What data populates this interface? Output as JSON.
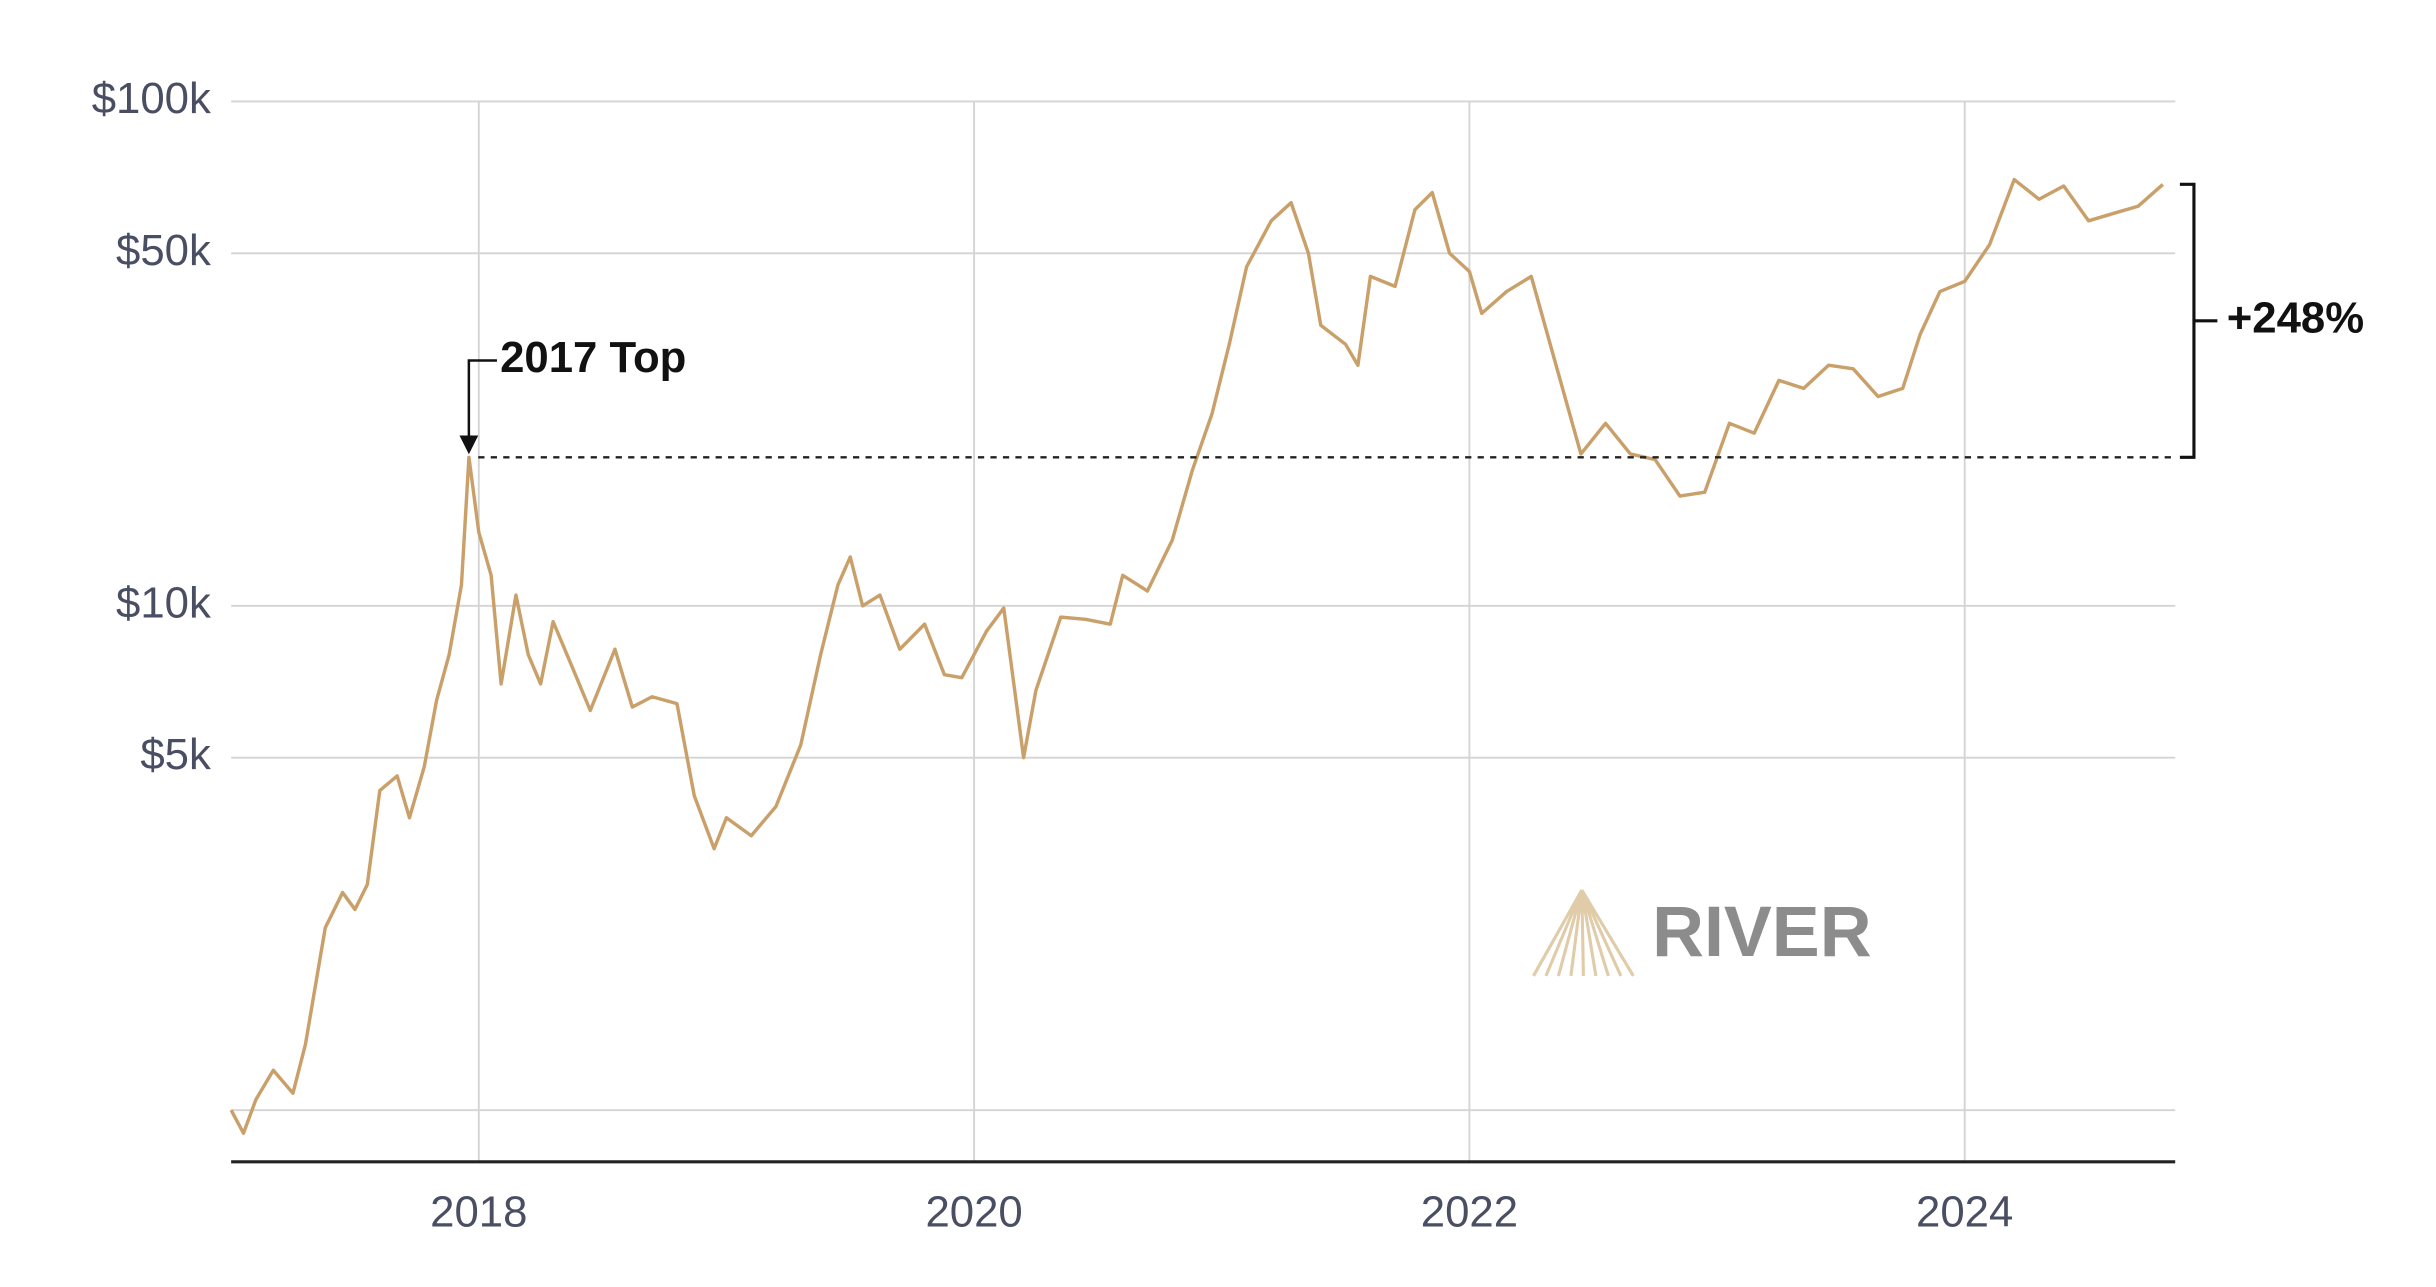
{
  "chart_data": {
    "type": "line",
    "log_scale": true,
    "grid": true,
    "color": "#c9a06a",
    "x": [
      2017.0,
      2017.05,
      2017.1,
      2017.17,
      2017.25,
      2017.3,
      2017.38,
      2017.45,
      2017.5,
      2017.55,
      2017.6,
      2017.67,
      2017.72,
      2017.78,
      2017.83,
      2017.88,
      2017.93,
      2017.96,
      2018.0,
      2018.05,
      2018.09,
      2018.15,
      2018.2,
      2018.25,
      2018.3,
      2018.38,
      2018.45,
      2018.55,
      2018.62,
      2018.7,
      2018.8,
      2018.87,
      2018.95,
      2019.0,
      2019.1,
      2019.2,
      2019.3,
      2019.38,
      2019.45,
      2019.5,
      2019.55,
      2019.62,
      2019.7,
      2019.8,
      2019.88,
      2019.95,
      2020.05,
      2020.12,
      2020.2,
      2020.25,
      2020.35,
      2020.45,
      2020.55,
      2020.6,
      2020.7,
      2020.8,
      2020.88,
      2020.96,
      2021.03,
      2021.1,
      2021.2,
      2021.28,
      2021.35,
      2021.4,
      2021.5,
      2021.55,
      2021.6,
      2021.7,
      2021.78,
      2021.85,
      2021.92,
      2022.0,
      2022.05,
      2022.15,
      2022.25,
      2022.35,
      2022.45,
      2022.55,
      2022.65,
      2022.75,
      2022.85,
      2022.95,
      2023.05,
      2023.15,
      2023.25,
      2023.35,
      2023.45,
      2023.55,
      2023.65,
      2023.75,
      2023.82,
      2023.9,
      2024.0,
      2024.1,
      2024.2,
      2024.3,
      2024.4,
      2024.5,
      2024.6,
      2024.7,
      2024.8
    ],
    "values": [
      1000,
      900,
      1050,
      1200,
      1080,
      1350,
      2300,
      2700,
      2500,
      2800,
      4300,
      4600,
      3800,
      4800,
      6500,
      8000,
      11000,
      19700,
      14000,
      11500,
      7000,
      10500,
      8000,
      7000,
      9300,
      7500,
      6200,
      8200,
      6300,
      6600,
      6400,
      4200,
      3300,
      3800,
      3500,
      4000,
      5300,
      8000,
      11000,
      12500,
      10000,
      10500,
      8200,
      9200,
      7300,
      7200,
      8900,
      9900,
      5000,
      6800,
      9500,
      9400,
      9200,
      11500,
      10700,
      13500,
      18500,
      24000,
      33000,
      47000,
      58000,
      63000,
      50000,
      36000,
      33000,
      30000,
      45000,
      43000,
      61000,
      66000,
      50000,
      46000,
      38000,
      42000,
      45000,
      30000,
      20000,
      23000,
      20000,
      19500,
      16500,
      16800,
      23000,
      22000,
      28000,
      27000,
      30000,
      29500,
      26000,
      27000,
      34500,
      42000,
      44000,
      52000,
      70000,
      64000,
      68000,
      58000,
      60000,
      62000,
      68500
    ],
    "xlim": [
      2017.0,
      2024.85
    ],
    "xticks": [
      2018,
      2020,
      2022,
      2024
    ],
    "ylim": [
      790,
      100000
    ],
    "yticks": [
      {
        "value": 1000
      },
      {
        "value": 5000,
        "label": "$5k"
      },
      {
        "value": 10000,
        "label": "$10k"
      },
      {
        "value": 50000,
        "label": "$50k"
      },
      {
        "value": 100000,
        "label": "$100k"
      }
    ],
    "annotations": [
      {
        "text": "2017 Top",
        "x": 2017.96,
        "y": 19700
      },
      {
        "text": "+248%",
        "from": 19700,
        "to": 68500
      }
    ],
    "watermark": "RIVER"
  }
}
